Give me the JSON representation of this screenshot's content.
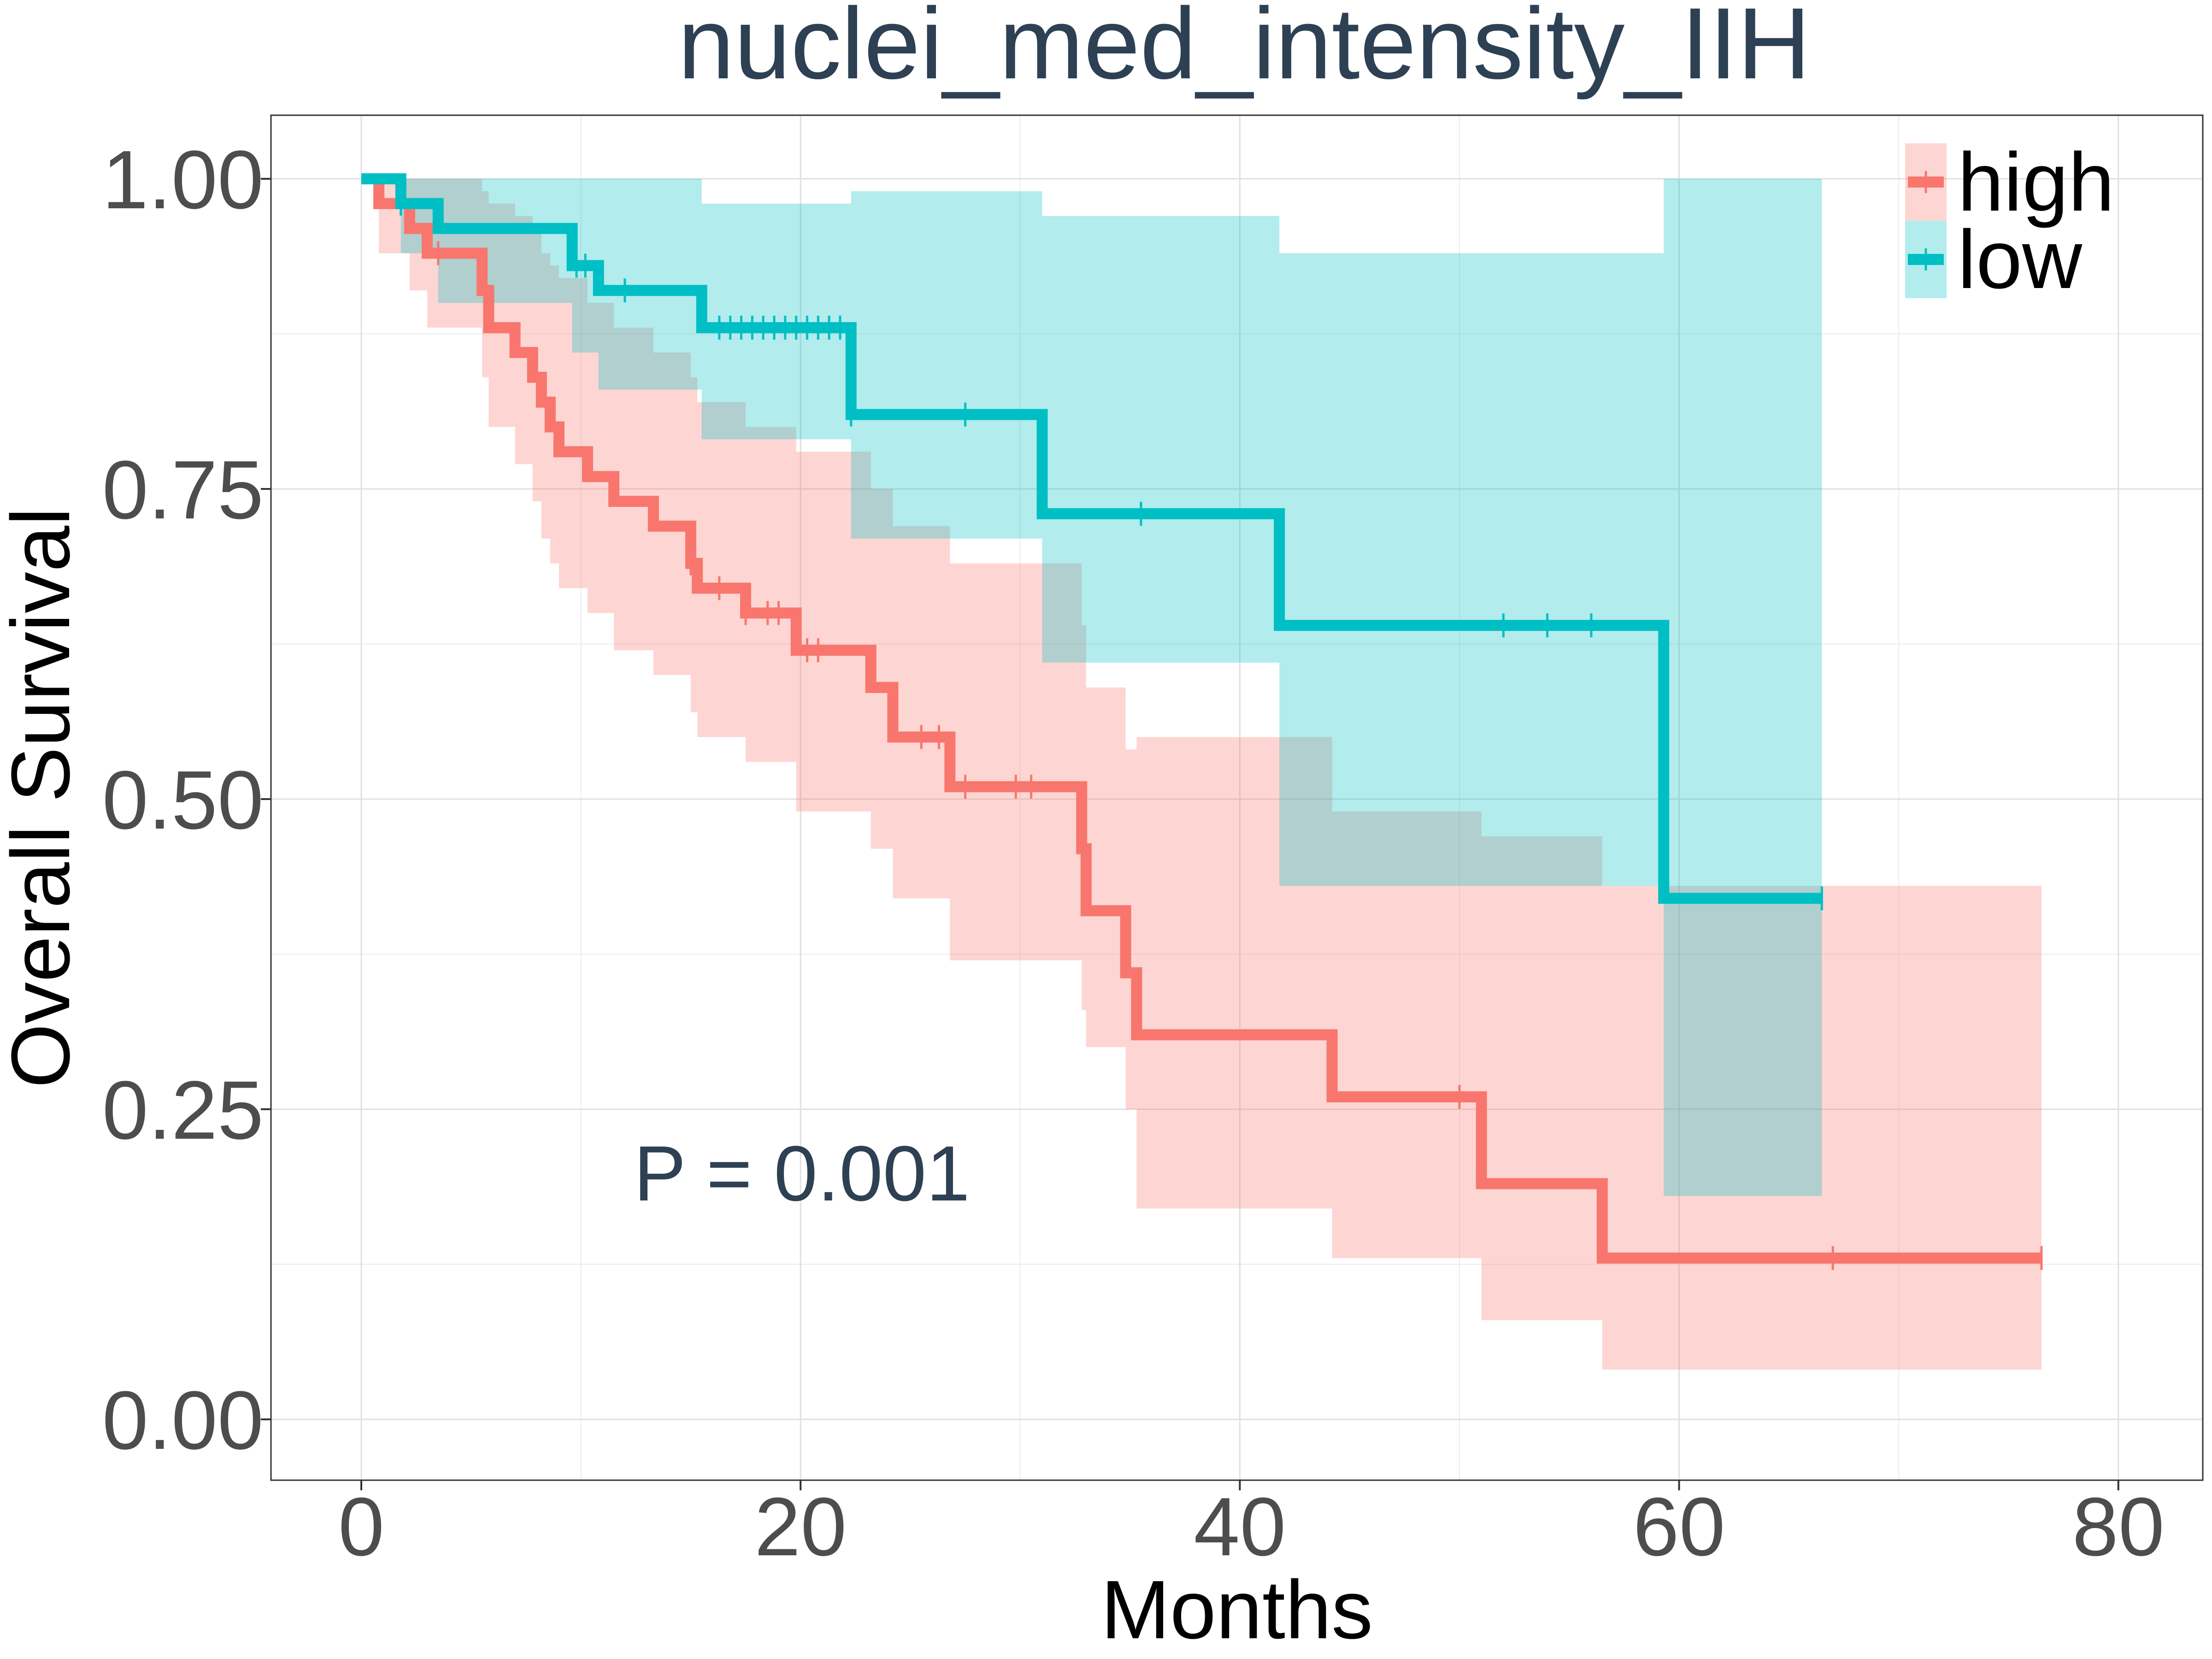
{
  "chart_data": {
    "type": "line",
    "title": "nuclei_med_intensity_IIH",
    "xlabel": "Months",
    "ylabel": "Overall Survival",
    "xlim": [
      -4,
      84
    ],
    "ylim": [
      -0.05,
      1.05
    ],
    "x_ticks": [
      "0",
      "20",
      "40",
      "60",
      "80"
    ],
    "y_ticks": [
      "0.00",
      "0.25",
      "0.50",
      "0.75",
      "1.00"
    ],
    "annotation": "P = 0.001",
    "grid": true,
    "legend": {
      "placement": "top-right",
      "entries": [
        "high",
        "low"
      ]
    },
    "colors": {
      "high": "#F8766D",
      "low": "#00BFC4",
      "title": "#2E4053",
      "tick": "#4D4D4D"
    },
    "series": [
      {
        "name": "high",
        "steps": [
          [
            0,
            1.0
          ],
          [
            0.8,
            0.98
          ],
          [
            2.2,
            0.96
          ],
          [
            3.0,
            0.94
          ],
          [
            5.5,
            0.91
          ],
          [
            5.8,
            0.88
          ],
          [
            7.0,
            0.86
          ],
          [
            7.8,
            0.84
          ],
          [
            8.2,
            0.82
          ],
          [
            8.6,
            0.8
          ],
          [
            9.0,
            0.78
          ],
          [
            10.3,
            0.76
          ],
          [
            11.5,
            0.74
          ],
          [
            13.3,
            0.72
          ],
          [
            15.0,
            0.69
          ],
          [
            15.3,
            0.67
          ],
          [
            17.5,
            0.65
          ],
          [
            19.8,
            0.62
          ],
          [
            23.2,
            0.59
          ],
          [
            24.2,
            0.55
          ],
          [
            26.8,
            0.51
          ],
          [
            32.8,
            0.46
          ],
          [
            33.0,
            0.41
          ],
          [
            34.8,
            0.36
          ],
          [
            35.3,
            0.31
          ],
          [
            44.2,
            0.26
          ],
          [
            51.0,
            0.19
          ],
          [
            56.5,
            0.13
          ],
          [
            76.5,
            0.13
          ]
        ],
        "ci": [
          [
            0,
            1.0,
            1.0
          ],
          [
            0.8,
            0.94,
            1.0
          ],
          [
            2.2,
            0.91,
            1.0
          ],
          [
            3.0,
            0.88,
            1.0
          ],
          [
            5.5,
            0.84,
            0.99
          ],
          [
            5.8,
            0.8,
            0.98
          ],
          [
            7.0,
            0.77,
            0.97
          ],
          [
            7.8,
            0.74,
            0.96
          ],
          [
            8.2,
            0.71,
            0.94
          ],
          [
            8.6,
            0.69,
            0.93
          ],
          [
            9.0,
            0.67,
            0.92
          ],
          [
            10.3,
            0.65,
            0.9
          ],
          [
            11.5,
            0.62,
            0.88
          ],
          [
            13.3,
            0.6,
            0.86
          ],
          [
            15.0,
            0.57,
            0.84
          ],
          [
            15.3,
            0.55,
            0.82
          ],
          [
            17.5,
            0.53,
            0.8
          ],
          [
            19.8,
            0.49,
            0.78
          ],
          [
            23.2,
            0.46,
            0.75
          ],
          [
            24.2,
            0.42,
            0.72
          ],
          [
            26.8,
            0.37,
            0.69
          ],
          [
            32.8,
            0.33,
            0.64
          ],
          [
            33.0,
            0.3,
            0.59
          ],
          [
            34.8,
            0.25,
            0.54
          ],
          [
            35.3,
            0.17,
            0.55
          ],
          [
            44.2,
            0.13,
            0.49
          ],
          [
            51.0,
            0.08,
            0.47
          ],
          [
            56.5,
            0.04,
            0.43
          ],
          [
            76.5,
            0.04,
            0.43
          ]
        ],
        "censor_x": [
          3.5,
          15.0,
          16.3,
          17.5,
          18.5,
          19.0,
          20.3,
          20.8,
          25.5,
          26.3,
          27.5,
          29.8,
          30.5,
          50.0,
          67.0,
          76.5
        ]
      },
      {
        "name": "low",
        "steps": [
          [
            0,
            1.0
          ],
          [
            1.8,
            0.98
          ],
          [
            3.5,
            0.96
          ],
          [
            9.6,
            0.93
          ],
          [
            10.8,
            0.91
          ],
          [
            15.5,
            0.88
          ],
          [
            22.3,
            0.81
          ],
          [
            31.0,
            0.73
          ],
          [
            41.8,
            0.64
          ],
          [
            59.3,
            0.42
          ],
          [
            66.5,
            0.42
          ]
        ],
        "ci": [
          [
            0,
            1.0,
            1.0
          ],
          [
            1.8,
            0.94,
            1.0
          ],
          [
            3.5,
            0.9,
            1.0
          ],
          [
            9.6,
            0.86,
            1.0
          ],
          [
            10.8,
            0.83,
            1.0
          ],
          [
            15.5,
            0.79,
            0.98
          ],
          [
            22.3,
            0.71,
            0.99
          ],
          [
            31.0,
            0.61,
            0.97
          ],
          [
            41.8,
            0.43,
            0.94
          ],
          [
            59.3,
            0.18,
            1.0
          ],
          [
            66.5,
            0.18,
            1.0
          ]
        ],
        "censor_x": [
          1.8,
          9.8,
          10.2,
          12.0,
          16.3,
          16.8,
          17.3,
          17.8,
          18.3,
          18.8,
          19.3,
          19.8,
          20.3,
          20.8,
          21.3,
          21.8,
          22.3,
          27.5,
          35.5,
          52.0,
          54.0,
          56.0,
          66.5
        ]
      }
    ]
  }
}
